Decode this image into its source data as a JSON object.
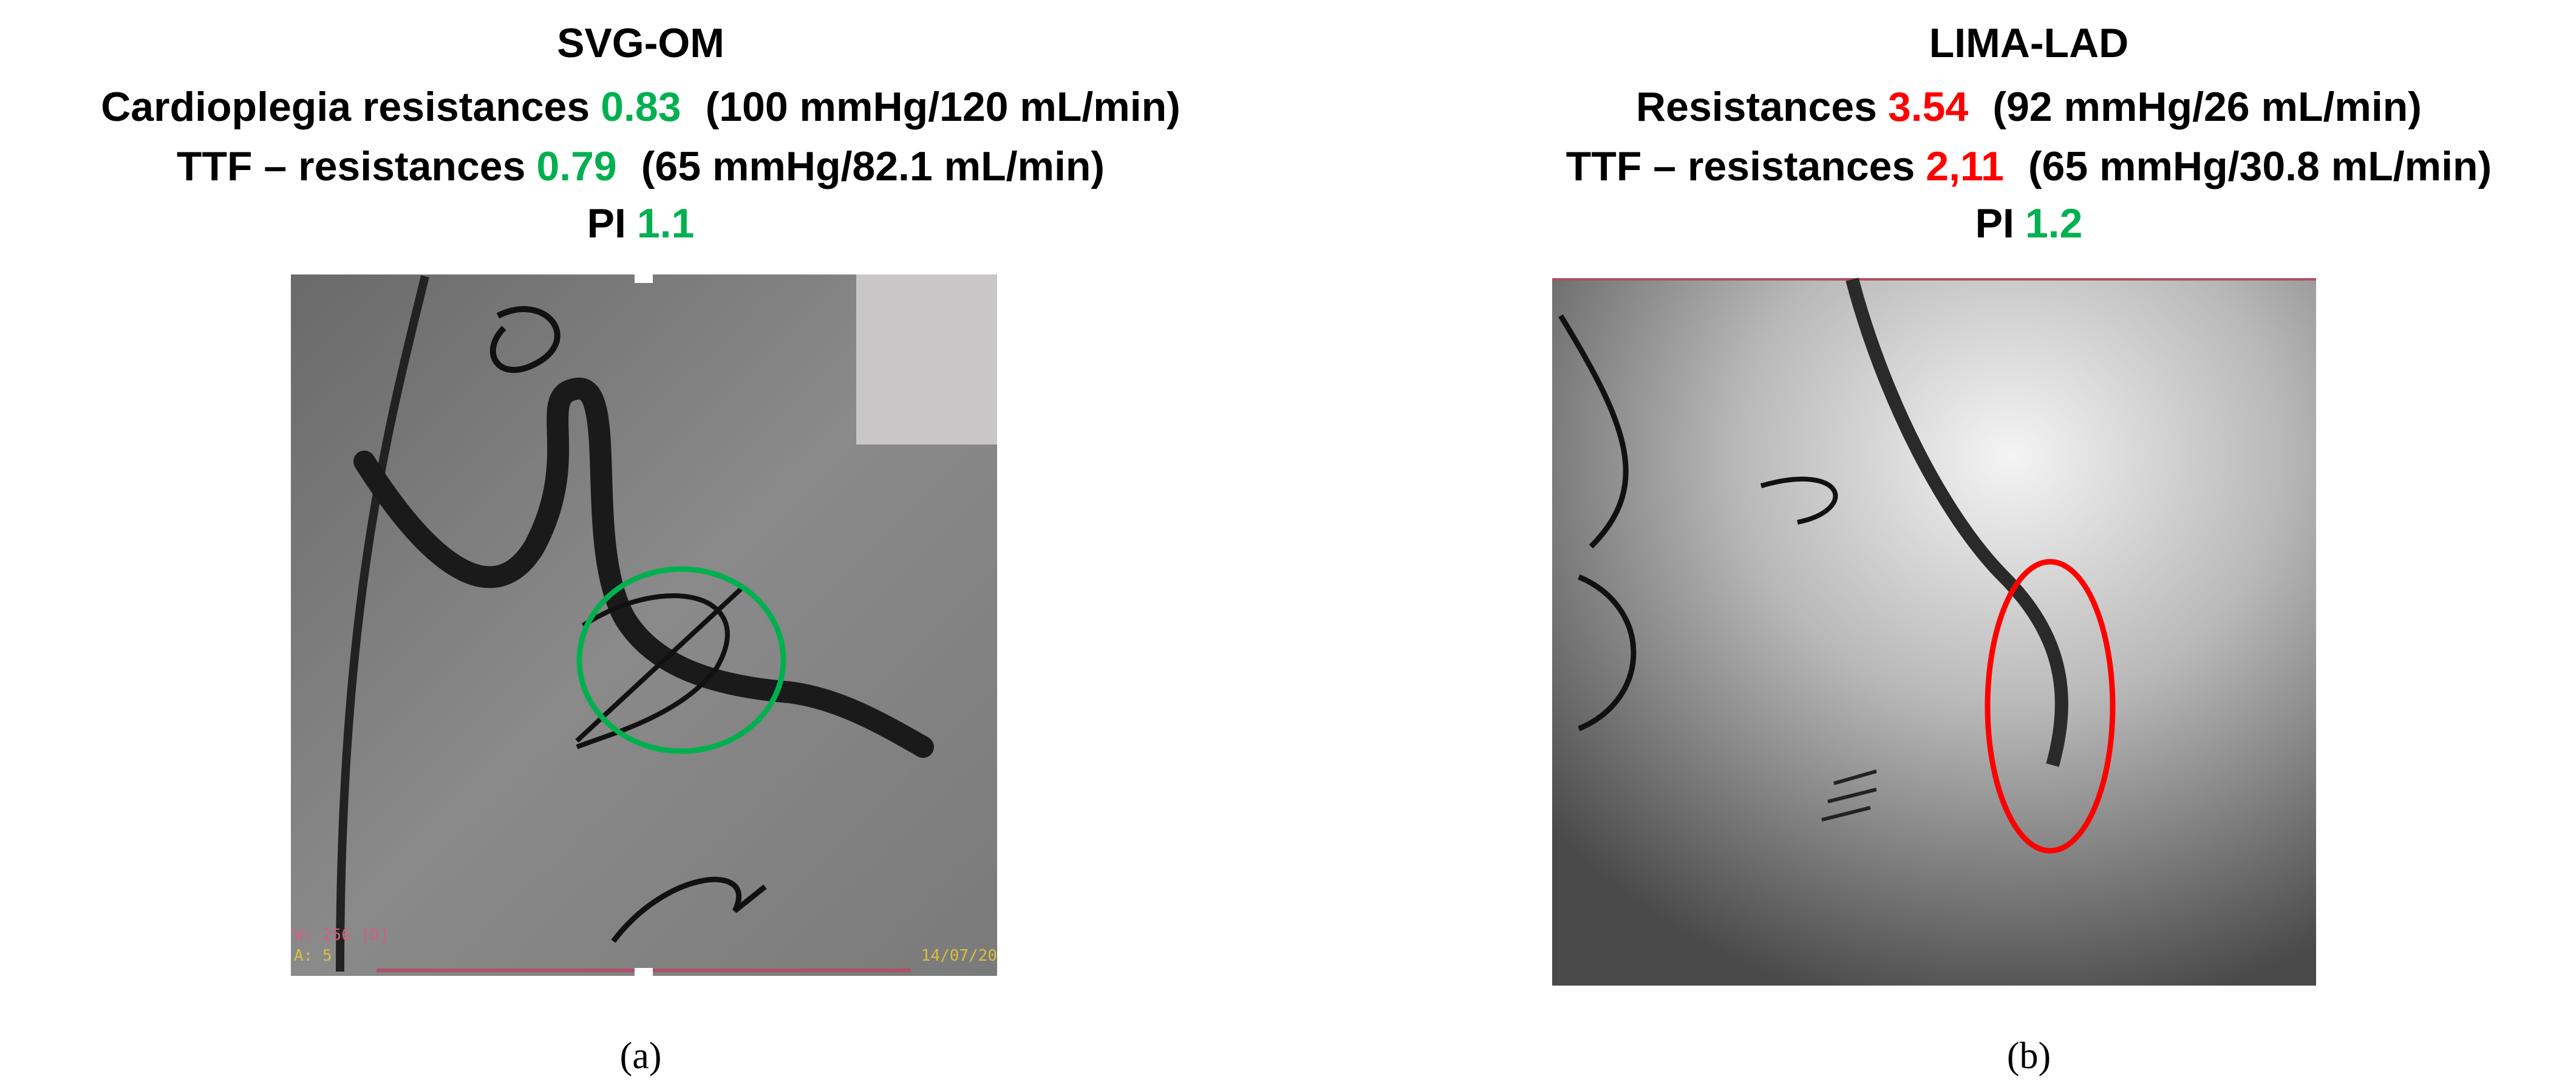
{
  "panels": [
    {
      "title": "SVG-OM",
      "lines": [
        {
          "label": "Cardioplegia resistances",
          "value": "0.83",
          "detail": "(100 mmHg/120 mL/min)"
        },
        {
          "label": "TTF – resistances",
          "value": "0.79",
          "detail": "(65 mmHg/82.1 mL/min)"
        },
        {
          "label": "PI",
          "value": "1.1"
        }
      ],
      "overlay": [
        "W: 256 [D]",
        "A: 5",
        "14/07/20"
      ],
      "caption": "(a)"
    },
    {
      "title": "LIMA-LAD",
      "lines": [
        {
          "label": "Resistances",
          "value": "3.54",
          "detail": "(92 mmHg/26 mL/min)"
        },
        {
          "label": "TTF – resistances",
          "value": "2,11",
          "detail": "(65 mmHg/30.8 mL/min)"
        },
        {
          "label": "PI",
          "value": "1.2"
        }
      ],
      "caption": "(b)"
    }
  ]
}
